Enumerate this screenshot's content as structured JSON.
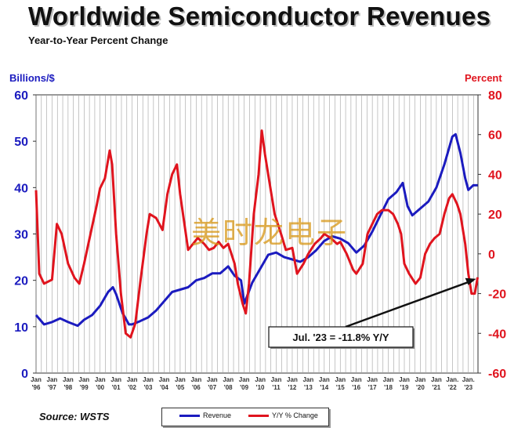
{
  "title": "Worldwide Semiconductor Revenues",
  "subtitle": "Year-to-Year Percent Change",
  "left_axis_unit": "Billions/$",
  "right_axis_unit": "Percent",
  "source": "Source: WSTS",
  "watermark": "美时龙电子",
  "annotation": "Jul. '23 = -11.8% Y/Y",
  "colors": {
    "revenue": "#1b1bbf",
    "yy": "#e0141e",
    "grid": "#a0a0a0",
    "plot_bg": "#ffffff"
  },
  "legend": {
    "revenue": "Revenue",
    "yy": "Y/Y % Change"
  },
  "chart_data": {
    "type": "line",
    "x_tick_labels": [
      [
        "Jan",
        "'96"
      ],
      [
        "Jan",
        "'97"
      ],
      [
        "Jan",
        "'98"
      ],
      [
        "Jan",
        "'99"
      ],
      [
        "Jan",
        "'00"
      ],
      [
        "Jan",
        "'01"
      ],
      [
        "Jan",
        "'02"
      ],
      [
        "Jan",
        "'03"
      ],
      [
        "Jan",
        "'04"
      ],
      [
        "Jan",
        "'05"
      ],
      [
        "Jan",
        "'06"
      ],
      [
        "Jan",
        "'07"
      ],
      [
        "Jan",
        "'08"
      ],
      [
        "Jan",
        "'09"
      ],
      [
        "Jan",
        "'10"
      ],
      [
        "Jan",
        "'11"
      ],
      [
        "Jan",
        "'12"
      ],
      [
        "Jan",
        "'13"
      ],
      [
        "Jan",
        "'14"
      ],
      [
        "Jan",
        "'15"
      ],
      [
        "Jan",
        "'16"
      ],
      [
        "Jan",
        "'17"
      ],
      [
        "Jan",
        "'18"
      ],
      [
        "Jan",
        "'19"
      ],
      [
        "Jan",
        "'20"
      ],
      [
        "Jan",
        "'21"
      ],
      [
        "Jan.",
        "'22"
      ],
      [
        "Jan.",
        "'23"
      ]
    ],
    "x_range": [
      1996,
      2023.6
    ],
    "left_axis": {
      "ylim": [
        0,
        60
      ],
      "ticks": [
        0,
        10,
        20,
        30,
        40,
        50,
        60
      ]
    },
    "right_axis": {
      "ylim": [
        -60,
        80
      ],
      "ticks": [
        -60,
        -40,
        -20,
        0,
        20,
        40,
        60,
        80
      ]
    },
    "grid": "vertical",
    "legend_position": "bottom",
    "series": [
      {
        "name": "Revenue",
        "axis": "left",
        "x": [
          1996.0,
          1996.5,
          1997.0,
          1997.5,
          1998.0,
          1998.6,
          1999.0,
          1999.5,
          2000.0,
          2000.5,
          2000.8,
          2001.0,
          2001.4,
          2001.8,
          2002.0,
          2002.5,
          2003.0,
          2003.5,
          2004.0,
          2004.5,
          2005.0,
          2005.5,
          2006.0,
          2006.5,
          2007.0,
          2007.5,
          2008.0,
          2008.4,
          2008.8,
          2009.0,
          2009.5,
          2010.0,
          2010.5,
          2011.0,
          2011.5,
          2012.0,
          2012.5,
          2013.0,
          2013.5,
          2014.0,
          2014.5,
          2015.0,
          2015.5,
          2016.0,
          2016.5,
          2017.0,
          2017.5,
          2018.0,
          2018.5,
          2018.9,
          2019.2,
          2019.5,
          2020.0,
          2020.5,
          2021.0,
          2021.5,
          2022.0,
          2022.2,
          2022.5,
          2022.8,
          2023.0,
          2023.3,
          2023.58
        ],
        "values": [
          12.5,
          10.5,
          11.0,
          11.8,
          11.0,
          10.2,
          11.5,
          12.5,
          14.5,
          17.5,
          18.5,
          17.0,
          13.0,
          10.5,
          10.5,
          11.2,
          12.0,
          13.5,
          15.5,
          17.5,
          18.0,
          18.5,
          20.0,
          20.5,
          21.5,
          21.5,
          23.0,
          21.0,
          20.0,
          15.0,
          19.5,
          22.5,
          25.5,
          26.0,
          25.0,
          24.5,
          24.0,
          25.0,
          26.5,
          28.5,
          29.5,
          29.0,
          28.0,
          26.0,
          27.5,
          30.5,
          34.0,
          37.5,
          39.0,
          41.0,
          36.0,
          34.0,
          35.5,
          37.0,
          40.0,
          45.0,
          51.0,
          51.5,
          47.5,
          42.0,
          39.5,
          40.5,
          40.5
        ]
      },
      {
        "name": "Y/Y % Change",
        "axis": "right",
        "x": [
          1996.0,
          1996.2,
          1996.5,
          1997.0,
          1997.3,
          1997.6,
          1998.0,
          1998.4,
          1998.7,
          1999.0,
          1999.4,
          1999.8,
          2000.0,
          2000.3,
          2000.6,
          2000.75,
          2001.0,
          2001.3,
          2001.6,
          2001.9,
          2002.2,
          2002.5,
          2002.9,
          2003.1,
          2003.5,
          2003.9,
          2004.2,
          2004.5,
          2004.8,
          2005.0,
          2005.5,
          2005.8,
          2006.1,
          2006.5,
          2006.8,
          2007.1,
          2007.4,
          2007.7,
          2008.0,
          2008.4,
          2008.6,
          2008.9,
          2009.1,
          2009.3,
          2009.6,
          2009.9,
          2010.1,
          2010.3,
          2010.6,
          2010.9,
          2011.3,
          2011.6,
          2012.0,
          2012.3,
          2012.7,
          2013.0,
          2013.4,
          2013.8,
          2014.0,
          2014.4,
          2014.8,
          2015.0,
          2015.4,
          2015.8,
          2016.0,
          2016.4,
          2016.7,
          2017.0,
          2017.3,
          2017.6,
          2018.0,
          2018.3,
          2018.6,
          2018.8,
          2019.0,
          2019.3,
          2019.7,
          2020.0,
          2020.3,
          2020.6,
          2020.9,
          2021.2,
          2021.5,
          2021.8,
          2022.0,
          2022.3,
          2022.5,
          2022.8,
          2023.0,
          2023.2,
          2023.4,
          2023.58
        ],
        "values": [
          32,
          -10,
          -15,
          -13,
          15,
          10,
          -5,
          -12,
          -15,
          -5,
          10,
          25,
          33,
          38,
          52,
          45,
          10,
          -20,
          -40,
          -42,
          -35,
          -15,
          10,
          20,
          18,
          12,
          30,
          40,
          45,
          30,
          2,
          5,
          8,
          5,
          2,
          3,
          6,
          3,
          5,
          -5,
          -15,
          -25,
          -30,
          -15,
          20,
          40,
          62,
          50,
          35,
          20,
          10,
          2,
          3,
          -10,
          -5,
          0,
          5,
          8,
          10,
          8,
          5,
          6,
          0,
          -8,
          -10,
          -5,
          10,
          15,
          20,
          22,
          22,
          20,
          15,
          10,
          -5,
          -10,
          -15,
          -12,
          0,
          5,
          8,
          10,
          20,
          28,
          30,
          25,
          20,
          5,
          -10,
          -20,
          -20,
          -11.8
        ]
      }
    ]
  }
}
